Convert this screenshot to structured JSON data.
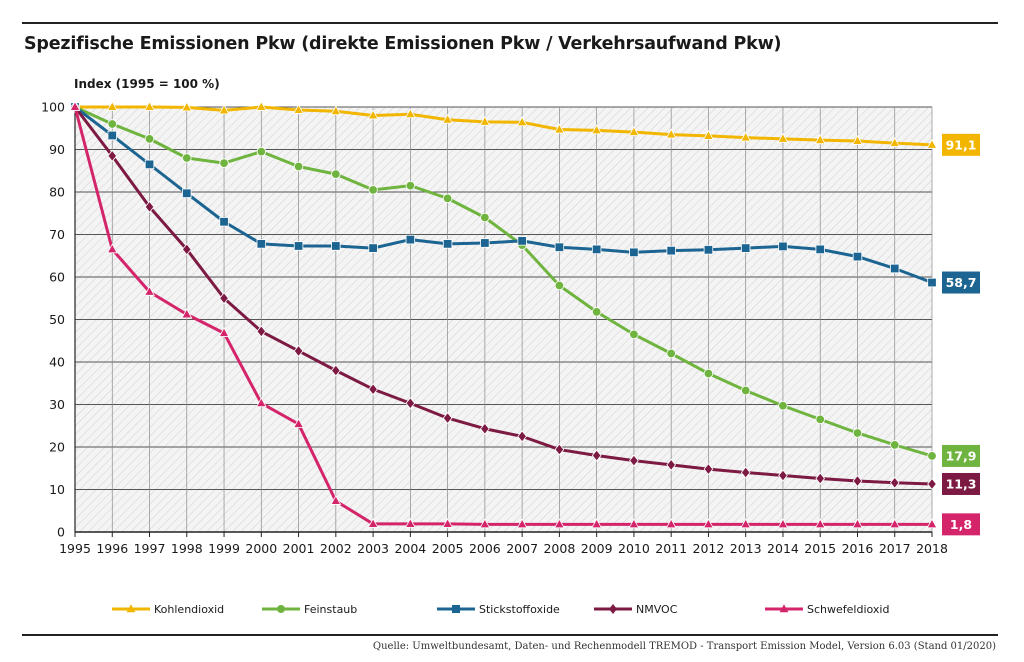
{
  "title": "Spezifische Emissionen Pkw (direkte Emissionen Pkw / Verkehrsaufwand Pkw)",
  "source": "Quelle: Umweltbundesamt, Daten- und Rechenmodell TREMOD - Transport Emission Model, Version 6.03 (Stand 01/2020)",
  "chart_data": {
    "type": "line",
    "title": "Spezifische Emissionen Pkw (direkte Emissionen Pkw / Verkehrsaufwand Pkw)",
    "ylabel": "Index (1995 = 100 %)",
    "xlabel": "",
    "ylim": [
      0,
      100
    ],
    "yticks": [
      0,
      10,
      20,
      30,
      40,
      50,
      60,
      70,
      80,
      90,
      100
    ],
    "grid": true,
    "legend_position": "bottom",
    "x": [
      "1995",
      "1996",
      "1997",
      "1998",
      "1999",
      "2000",
      "2001",
      "2002",
      "2003",
      "2004",
      "2005",
      "2006",
      "2007",
      "2008",
      "2009",
      "2010",
      "2011",
      "2012",
      "2013",
      "2014",
      "2015",
      "2016",
      "2017",
      "2018"
    ],
    "series": [
      {
        "name": "Kohlendioxid",
        "color": "#f2b600",
        "marker": "triangle",
        "end_label": "91,1",
        "values": [
          100,
          100,
          100,
          99.9,
          99.2,
          100,
          99.3,
          99,
          98,
          98.3,
          97,
          96.5,
          96.4,
          94.7,
          94.5,
          94.1,
          93.5,
          93.2,
          92.8,
          92.5,
          92.2,
          92,
          91.5,
          91.1
        ]
      },
      {
        "name": "Feinstaub",
        "color": "#6fb43f",
        "marker": "circle",
        "end_label": "17,9",
        "values": [
          100,
          96,
          92.5,
          88,
          86.8,
          89.5,
          86,
          84.2,
          80.5,
          81.5,
          78.5,
          74,
          67.5,
          58,
          51.8,
          46.5,
          42,
          37.3,
          33.3,
          29.7,
          26.5,
          23.3,
          20.5,
          17.9
        ]
      },
      {
        "name": "Stickstoffoxide",
        "color": "#1c6592",
        "marker": "square",
        "end_label": "58,7",
        "values": [
          100,
          93.3,
          86.5,
          79.7,
          73,
          67.8,
          67.3,
          67.3,
          66.8,
          68.8,
          67.8,
          68,
          68.5,
          67,
          66.5,
          65.8,
          66.2,
          66.4,
          66.8,
          67.2,
          66.5,
          64.8,
          62,
          58.7
        ]
      },
      {
        "name": "NMVOC",
        "color": "#7d1a43",
        "marker": "diamond",
        "end_label": "11,3",
        "values": [
          100,
          88.5,
          76.5,
          66.5,
          55,
          47.2,
          42.6,
          38,
          33.6,
          30.3,
          26.8,
          24.3,
          22.5,
          19.4,
          18,
          16.8,
          15.8,
          14.8,
          14,
          13.3,
          12.6,
          12,
          11.6,
          11.3
        ]
      },
      {
        "name": "Schwefeldioxid",
        "color": "#d4256a",
        "marker": "triangle",
        "end_label": "1,8",
        "values": [
          100,
          66.5,
          56.5,
          51.2,
          46.8,
          30.3,
          25.4,
          7.3,
          1.9,
          1.9,
          1.9,
          1.8,
          1.8,
          1.8,
          1.8,
          1.8,
          1.8,
          1.8,
          1.8,
          1.8,
          1.8,
          1.8,
          1.8,
          1.8
        ]
      }
    ]
  }
}
